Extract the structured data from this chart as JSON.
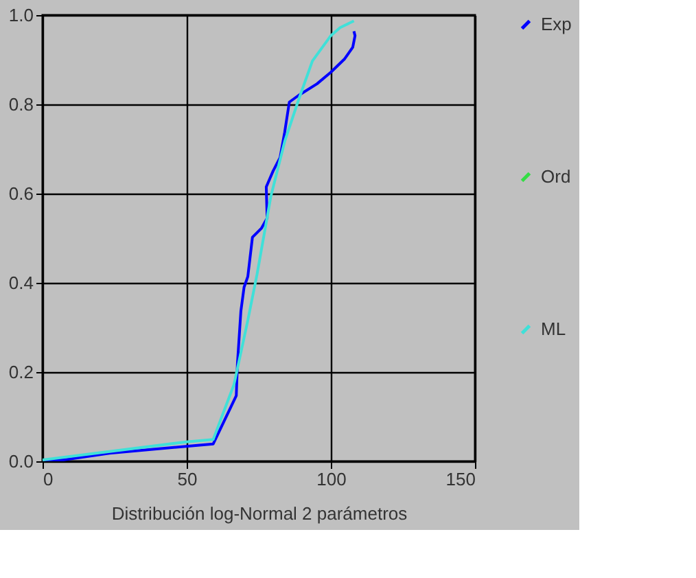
{
  "chart_data": {
    "type": "line",
    "xlabel": "Distribución log-Normal 2 parámetros",
    "xlim": [
      0,
      150
    ],
    "xticks": [
      0,
      50,
      100,
      150
    ],
    "ylim": [
      0,
      1
    ],
    "yticks": [
      {
        "value": 0,
        "label": "0.0"
      },
      {
        "value": 0.2,
        "label": "0.2"
      },
      {
        "value": 0.4,
        "label": "0.4"
      },
      {
        "value": 0.6,
        "label": "0.6"
      },
      {
        "value": 0.8,
        "label": "0.8"
      },
      {
        "value": 1,
        "label": "1.0"
      }
    ],
    "grid": true,
    "legend": "right",
    "line_style": "solid",
    "marker": "none",
    "series": [
      {
        "name": "Exp",
        "color": "#0000ff",
        "x": [
          0,
          7.2,
          23.2,
          50.4,
          59.2,
          67.2,
          67.6,
          68.8,
          69.9,
          71.2,
          72.8,
          75.9,
          77.9,
          77.6,
          80,
          82.4,
          84,
          85.6,
          88.8,
          95.2,
          100,
          104.8,
          107.6,
          108.4,
          108
        ],
        "values": [
          0.003,
          0.003,
          0.018,
          0.034,
          0.039,
          0.147,
          0.219,
          0.337,
          0.39,
          0.414,
          0.502,
          0.522,
          0.545,
          0.615,
          0.651,
          0.681,
          0.738,
          0.805,
          0.82,
          0.846,
          0.872,
          0.902,
          0.928,
          0.954,
          0.964
        ]
      },
      {
        "name": "Ord",
        "color": "#33dd44"
      },
      {
        "name": "ML",
        "color": "#40e0d8",
        "x": [
          0,
          50.4,
          59.2,
          66.4,
          71.2,
          74.4,
          79.2,
          84,
          88.8,
          93.6,
          100,
          103.2,
          108
        ],
        "values": [
          0.003,
          0.044,
          0.049,
          0.172,
          0.316,
          0.419,
          0.594,
          0.717,
          0.81,
          0.897,
          0.954,
          0.972,
          0.987
        ]
      }
    ]
  }
}
